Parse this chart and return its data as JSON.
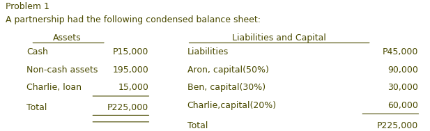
{
  "title_line1": "Problem 1",
  "title_line2": "A partnership had the following condensed balance sheet:",
  "assets_header": "Assets",
  "liabilities_header": "Liabilities and Capital",
  "assets_items": [
    [
      "Cash",
      "P15,000"
    ],
    [
      "Non-cash assets",
      "195,000"
    ],
    [
      "Charlie, loan",
      "15,000"
    ]
  ],
  "assets_total_label": "Total",
  "assets_total_value": "P225,000",
  "liabilities_items": [
    [
      "Liabilities",
      "P45,000"
    ],
    [
      "Aron, capital(50%)",
      "90,000"
    ],
    [
      "Ben, capital(30%)",
      "30,000"
    ],
    [
      "Charlie,capital(20%)",
      "60,000"
    ]
  ],
  "liabilities_total_label": "Total",
  "liabilities_total_value": "P225,000",
  "text_color": "#4a4a00",
  "bg_color": "#ffffff",
  "font_size": 9.0,
  "title_font_size": 9.0
}
